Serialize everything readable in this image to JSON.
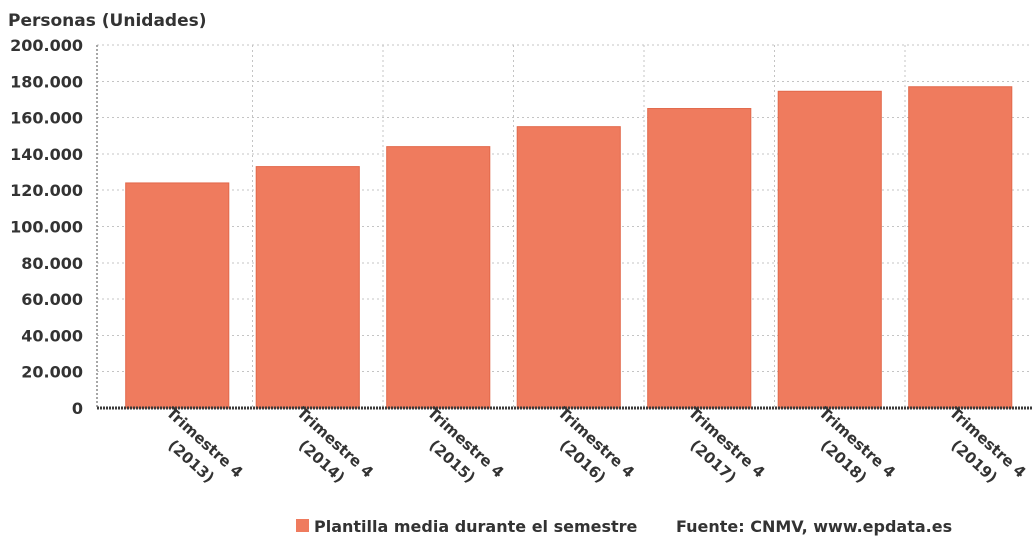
{
  "chart_data": {
    "type": "bar",
    "ylabel": "Personas (Unidades)",
    "categories": [
      "Trimestre 4 (2013)",
      "Trimestre 4 (2014)",
      "Trimestre 4 (2015)",
      "Trimestre 4 (2016)",
      "Trimestre 4 (2017)",
      "Trimestre 4 (2018)",
      "Trimestre 4 (2019)"
    ],
    "series": [
      {
        "name": "Plantilla media durante el semestre",
        "values": [
          124000,
          133000,
          144000,
          155000,
          165000,
          174500,
          177000
        ]
      }
    ],
    "ylim": [
      0,
      200000
    ],
    "yticks": [
      0,
      20000,
      40000,
      60000,
      80000,
      100000,
      120000,
      140000,
      160000,
      180000,
      200000
    ],
    "ytick_labels": [
      "0",
      "20.000",
      "40.000",
      "60.000",
      "80.000",
      "100.000",
      "120.000",
      "140.000",
      "160.000",
      "180.000",
      "200.000"
    ],
    "grid": {
      "horizontal": true,
      "vertical": true
    },
    "legend": {
      "position": "bottom"
    },
    "source": "Fuente: CNMV, www.epdata.es",
    "colors": {
      "bar": "#EF7B5E",
      "bar_edge": "#E2684A",
      "text": "#333333",
      "grid": "#C4C4C4",
      "axis": "#3A3A3A",
      "axis_left": "#8A8A8A",
      "background": "#FFFFFF"
    }
  }
}
